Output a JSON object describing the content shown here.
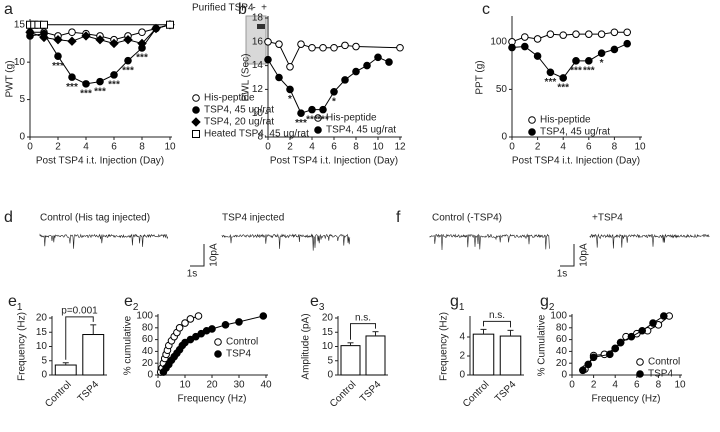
{
  "chart_data": [
    {
      "type": "line",
      "panel": "a",
      "ylabel": "PWT (g)",
      "xlabel": "Post TSP4 i.t. Injection (Day)",
      "xlim": [
        0,
        10
      ],
      "xticks": [
        0,
        2,
        4,
        6,
        8,
        10
      ],
      "ylim": [
        0,
        15.5
      ],
      "yticks": [
        0,
        5,
        10,
        15
      ],
      "inset": {
        "title": "Purified TSP4",
        "lanes": [
          "-",
          "+"
        ]
      },
      "series": [
        {
          "name": "His-peptide",
          "marker": "circle-open",
          "color": "#000",
          "x": [
            0,
            1,
            2,
            3,
            4,
            5,
            6,
            7,
            8,
            9,
            10
          ],
          "values": [
            14,
            14,
            13.5,
            14,
            13.8,
            13.5,
            13,
            13.5,
            14,
            14.5,
            15
          ]
        },
        {
          "name": "TSP4, 45 ug/rat",
          "marker": "circle",
          "color": "#000",
          "x": [
            0,
            1,
            2,
            3,
            4,
            5,
            6,
            7,
            8,
            9,
            10
          ],
          "values": [
            13.5,
            13.8,
            10.8,
            8,
            7.1,
            7.4,
            8.3,
            10.2,
            11.9,
            14.5,
            15
          ],
          "labels": [
            null,
            null,
            "***",
            "***",
            "***",
            "***",
            "***",
            "***",
            "***",
            null,
            null
          ]
        },
        {
          "name": "TSP4, 20 ug/rat",
          "marker": "diamond",
          "color": "#000",
          "x": [
            0,
            1,
            2,
            3,
            4,
            5,
            6,
            7,
            8,
            9,
            10
          ],
          "values": [
            14,
            13.3,
            13,
            12.8,
            13.5,
            13,
            12.5,
            13,
            12.5,
            14.5,
            15
          ]
        },
        {
          "name": "Heated TSP4, 45 ug/rat",
          "marker": "square-open",
          "color": "#000",
          "x": [
            0,
            0.3,
            0.6,
            1,
            10
          ],
          "values": [
            15,
            15,
            15,
            15,
            15
          ]
        }
      ]
    },
    {
      "type": "line",
      "panel": "b",
      "ylabel": "PWL (Sec)",
      "xlabel": "Post TSP4 i.t. Injection (Day)",
      "xlim": [
        0,
        12
      ],
      "xticks": [
        0,
        2,
        4,
        6,
        8,
        10,
        12
      ],
      "ylim": [
        8,
        18
      ],
      "yticks": [
        8,
        10,
        12,
        14,
        16,
        18
      ],
      "series": [
        {
          "name": "His-peptide",
          "marker": "circle-open",
          "color": "#000",
          "x": [
            0,
            1,
            2,
            3,
            4,
            5,
            6,
            7,
            8,
            12
          ],
          "values": [
            16,
            15.8,
            13.9,
            15.8,
            15.5,
            15.5,
            15.5,
            15.7,
            15.6,
            15.5
          ]
        },
        {
          "name": "TSP4, 45 ug/rat",
          "marker": "circle",
          "color": "#000",
          "x": [
            0,
            1,
            2,
            3,
            4,
            5,
            6,
            7,
            8,
            9,
            10,
            11
          ],
          "values": [
            14.5,
            13,
            12,
            10,
            10.3,
            10.3,
            11.8,
            12.8,
            13.5,
            14,
            14.7,
            14.3
          ],
          "labels": [
            null,
            null,
            "*",
            "***",
            "***",
            "***",
            "*",
            null,
            null,
            null,
            null,
            null
          ]
        }
      ]
    },
    {
      "type": "line",
      "panel": "c",
      "ylabel": "PPT (g)",
      "xlabel": "Post TSP4 i.t. Injection (Day)",
      "xlim": [
        0,
        10
      ],
      "xticks": [
        0,
        2,
        4,
        6,
        8,
        10
      ],
      "ylim": [
        0,
        125
      ],
      "yticks": [
        0,
        50,
        100
      ],
      "series": [
        {
          "name": "His-peptide",
          "marker": "circle-open",
          "color": "#000",
          "x": [
            0,
            1,
            2,
            3,
            4,
            5,
            6,
            7,
            8,
            9
          ],
          "values": [
            100,
            105,
            103,
            108,
            107,
            108,
            108,
            108,
            110,
            110
          ]
        },
        {
          "name": "TSP4, 45 ug/rat",
          "marker": "circle",
          "color": "#000",
          "x": [
            0,
            1,
            2,
            3,
            4,
            5,
            6,
            7,
            8,
            9
          ],
          "values": [
            94,
            95,
            85,
            68,
            62,
            80,
            80,
            88,
            92,
            98
          ],
          "labels": [
            null,
            null,
            null,
            "***",
            "***",
            "***",
            "***",
            "*",
            null,
            null
          ]
        }
      ]
    },
    {
      "type": "bar",
      "panel": "e",
      "panel_sub": "1",
      "ylabel": "Frequency (Hz)",
      "annotation": "p=0.001",
      "categories": [
        "Control",
        "TSP4"
      ],
      "values": [
        3.5,
        14.2
      ],
      "errors": [
        0.8,
        3.4
      ],
      "color": "#fff",
      "ylim": [
        0,
        20
      ],
      "yticks": [
        0,
        5,
        10,
        15,
        20
      ]
    },
    {
      "type": "line",
      "panel": "e",
      "panel_sub": "2",
      "ylabel": "% cumulative",
      "xlabel": "Frequency (Hz)",
      "xlim": [
        0,
        40
      ],
      "xticks": [
        0,
        10,
        20,
        30,
        40
      ],
      "ylim": [
        0,
        100
      ],
      "yticks": [
        0,
        20,
        40,
        60,
        80,
        100
      ],
      "series": [
        {
          "name": "Control",
          "marker": "circle-open",
          "color": "#000",
          "x": [
            1,
            1.5,
            2,
            2.5,
            3,
            3.5,
            4,
            5,
            6,
            7,
            8,
            10,
            12,
            15
          ],
          "values": [
            5,
            12,
            20,
            28,
            35,
            42,
            50,
            58,
            65,
            72,
            80,
            88,
            95,
            100
          ]
        },
        {
          "name": "TSP4",
          "marker": "circle",
          "color": "#000",
          "x": [
            2,
            3,
            4,
            5,
            6,
            7,
            8,
            9,
            10,
            12,
            14,
            16,
            18,
            20,
            25,
            30,
            39
          ],
          "values": [
            5,
            12,
            18,
            25,
            31,
            37,
            43,
            50,
            55,
            60,
            65,
            70,
            75,
            78,
            85,
            90,
            100
          ]
        }
      ]
    },
    {
      "type": "bar",
      "panel": "e",
      "panel_sub": "3",
      "ylabel": "Amplitude (pA)",
      "annotation": "n.s.",
      "categories": [
        "Control",
        "TSP4"
      ],
      "values": [
        10.3,
        13.7
      ],
      "errors": [
        1,
        1.5
      ],
      "color": "#fff",
      "ylim": [
        0,
        20
      ],
      "yticks": [
        0,
        5,
        10,
        15,
        20
      ]
    },
    {
      "type": "bar",
      "panel": "g",
      "panel_sub": "1",
      "ylabel": "Frequency (Hz)",
      "annotation": "n.s.",
      "categories": [
        "Control",
        "TSP4"
      ],
      "values": [
        4.3,
        4.1
      ],
      "errors": [
        0.5,
        0.6
      ],
      "color": "#fff",
      "ylim": [
        0,
        6
      ],
      "yticks": [
        0,
        2,
        4
      ]
    },
    {
      "type": "line",
      "panel": "g",
      "panel_sub": "2",
      "ylabel": "% Cumulative",
      "xlabel": "Frequency (Hz)",
      "xlim": [
        0,
        10
      ],
      "xticks": [
        0,
        2,
        4,
        6,
        8,
        10
      ],
      "ylim": [
        0,
        100
      ],
      "yticks": [
        0,
        20,
        40,
        60,
        80,
        100
      ],
      "series": [
        {
          "name": "Control",
          "marker": "circle-open",
          "color": "#000",
          "x": [
            1.2,
            2,
            3,
            4,
            4.5,
            5,
            6,
            7,
            8,
            9
          ],
          "values": [
            10,
            33,
            35,
            45,
            55,
            65,
            70,
            75,
            85,
            100
          ]
        },
        {
          "name": "TSP4",
          "marker": "circle",
          "color": "#000",
          "x": [
            1,
            1.5,
            2,
            3.5,
            4,
            4.5,
            5.5,
            6.5,
            7.5,
            8.5
          ],
          "values": [
            8,
            18,
            30,
            35,
            45,
            55,
            65,
            75,
            88,
            100
          ]
        }
      ]
    }
  ],
  "traces": [
    {
      "panel": "d",
      "labels": [
        "Control (His tag injected)",
        "TSP4 injected"
      ],
      "time_scale": "1s",
      "current_scale": "10pA"
    },
    {
      "panel": "f",
      "labels": [
        "Control (-TSP4)",
        "+TSP4"
      ],
      "time_scale": "1s",
      "current_scale": "10pA"
    }
  ]
}
